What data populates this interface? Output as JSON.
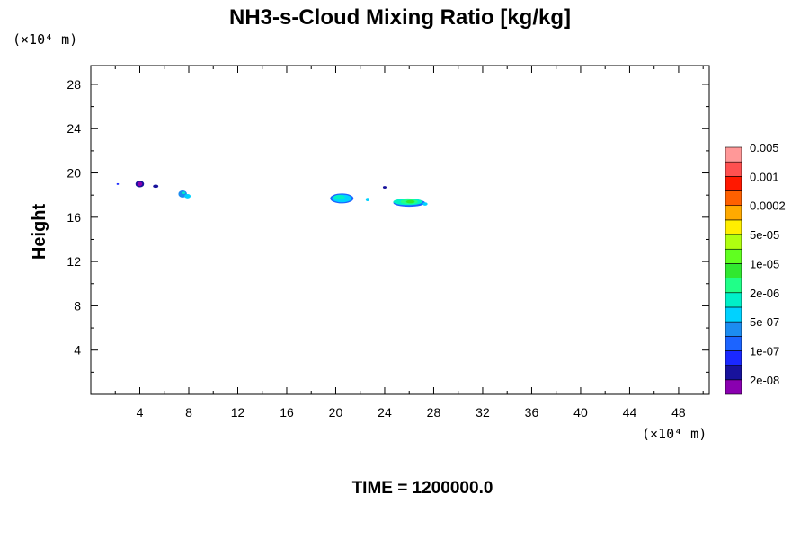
{
  "chart_data": {
    "type": "heatmap",
    "title": "NH3-s-Cloud Mixing Ratio [kg/kg]",
    "ylabel": "Height",
    "xunit": "(×10⁴ m)",
    "yunit": "(×10⁴ m)",
    "xlim": [
      0,
      50.5
    ],
    "ylim": [
      0,
      29.7
    ],
    "xticks": [
      4,
      8,
      12,
      16,
      20,
      24,
      28,
      32,
      36,
      40,
      44,
      48
    ],
    "yticks": [
      4,
      8,
      12,
      16,
      20,
      24,
      28
    ],
    "footer": "TIME = 1200000.0",
    "colorbar": {
      "colors": [
        "#8a00b0",
        "#18129c",
        "#1a28ff",
        "#1c64ff",
        "#1c8cf0",
        "#00d2ff",
        "#00f0c8",
        "#20ff88",
        "#30e830",
        "#60ff20",
        "#b0ff10",
        "#ffee00",
        "#ffaa00",
        "#ff6000",
        "#ff1800",
        "#ff5050",
        "#ff9898"
      ],
      "labels": [
        "2e-08",
        "1e-07",
        "5e-07",
        "2e-06",
        "1e-05",
        "5e-05",
        "0.0002",
        "0.001",
        "0.005"
      ]
    },
    "blobs": [
      {
        "x": 2.2,
        "y": 19.0,
        "rx": 0.1,
        "ry": 0.08,
        "color": "#1a28ff"
      },
      {
        "x": 4.0,
        "y": 19.0,
        "rx": 0.35,
        "ry": 0.3,
        "color": "#18129c"
      },
      {
        "x": 4.0,
        "y": 19.0,
        "rx": 0.2,
        "ry": 0.18,
        "color": "#8a00b0"
      },
      {
        "x": 5.3,
        "y": 18.8,
        "rx": 0.22,
        "ry": 0.15,
        "color": "#18129c"
      },
      {
        "x": 7.5,
        "y": 18.1,
        "rx": 0.35,
        "ry": 0.32,
        "color": "#1c8cf0"
      },
      {
        "x": 7.9,
        "y": 17.9,
        "rx": 0.25,
        "ry": 0.2,
        "color": "#00d2ff"
      },
      {
        "x": 7.6,
        "y": 18.2,
        "rx": 0.12,
        "ry": 0.1,
        "color": "#00f0c8"
      },
      {
        "x": 20.5,
        "y": 17.7,
        "rx": 0.95,
        "ry": 0.45,
        "color": "#1c64ff"
      },
      {
        "x": 20.5,
        "y": 17.7,
        "rx": 0.8,
        "ry": 0.35,
        "color": "#00d2ff"
      },
      {
        "x": 20.3,
        "y": 17.8,
        "rx": 0.45,
        "ry": 0.22,
        "color": "#00f0c8"
      },
      {
        "x": 22.6,
        "y": 17.6,
        "rx": 0.15,
        "ry": 0.15,
        "color": "#00d2ff"
      },
      {
        "x": 24.0,
        "y": 18.7,
        "rx": 0.15,
        "ry": 0.12,
        "color": "#18129c"
      },
      {
        "x": 26.0,
        "y": 17.3,
        "rx": 1.3,
        "ry": 0.35,
        "color": "#1c64ff"
      },
      {
        "x": 25.9,
        "y": 17.4,
        "rx": 1.2,
        "ry": 0.3,
        "color": "#00f0c8"
      },
      {
        "x": 26.0,
        "y": 17.4,
        "rx": 0.7,
        "ry": 0.22,
        "color": "#20ff88"
      },
      {
        "x": 26.1,
        "y": 17.4,
        "rx": 0.35,
        "ry": 0.15,
        "color": "#30e830"
      },
      {
        "x": 27.3,
        "y": 17.2,
        "rx": 0.2,
        "ry": 0.15,
        "color": "#00d2ff"
      }
    ]
  }
}
